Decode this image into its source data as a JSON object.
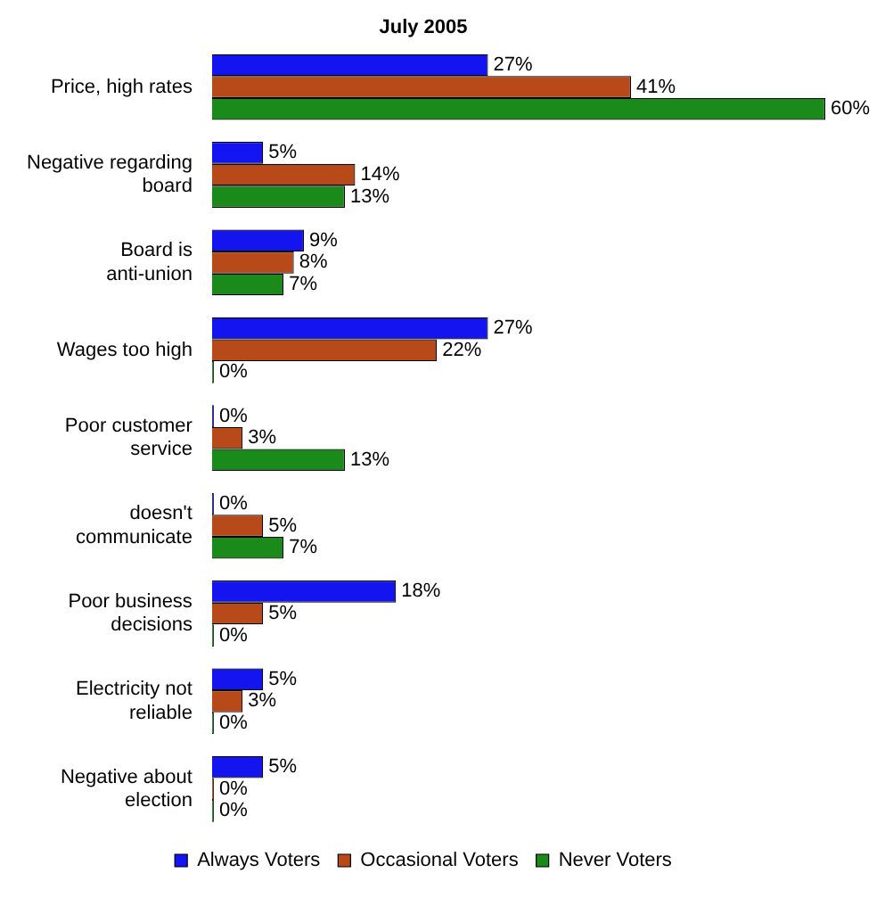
{
  "chart_data": {
    "type": "bar",
    "orientation": "horizontal",
    "title": "July 2005",
    "legend": "bottom",
    "categories": [
      "Price, high rates",
      "Negative regarding board",
      "Board is anti-union",
      "Wages too high",
      "Poor customer service",
      "doesn't communicate",
      "Poor business decisions",
      "Electricity not reliable",
      "Negative about election"
    ],
    "series": [
      {
        "name": "Always Voters",
        "color": "#1414f0",
        "values": [
          27,
          5,
          9,
          27,
          0,
          0,
          18,
          5,
          5
        ],
        "value_labels": [
          "27%",
          "5%",
          "9%",
          "27%",
          "0%",
          "0%",
          "18%",
          "5%",
          "5%"
        ]
      },
      {
        "name": "Occasional Voters",
        "color": "#b84a1a",
        "values": [
          41,
          14,
          8,
          22,
          3,
          5,
          5,
          3,
          0
        ],
        "value_labels": [
          "41%",
          "14%",
          "8%",
          "22%",
          "3%",
          "5%",
          "5%",
          "3%",
          "0%"
        ]
      },
      {
        "name": "Never Voters",
        "color": "#1a8a1a",
        "values": [
          60,
          13,
          7,
          0,
          13,
          7,
          0,
          0,
          0
        ],
        "value_labels": [
          "60%",
          "13%",
          "7%",
          "0%",
          "13%",
          "7%",
          "0%",
          "0%",
          "0%"
        ]
      }
    ]
  }
}
